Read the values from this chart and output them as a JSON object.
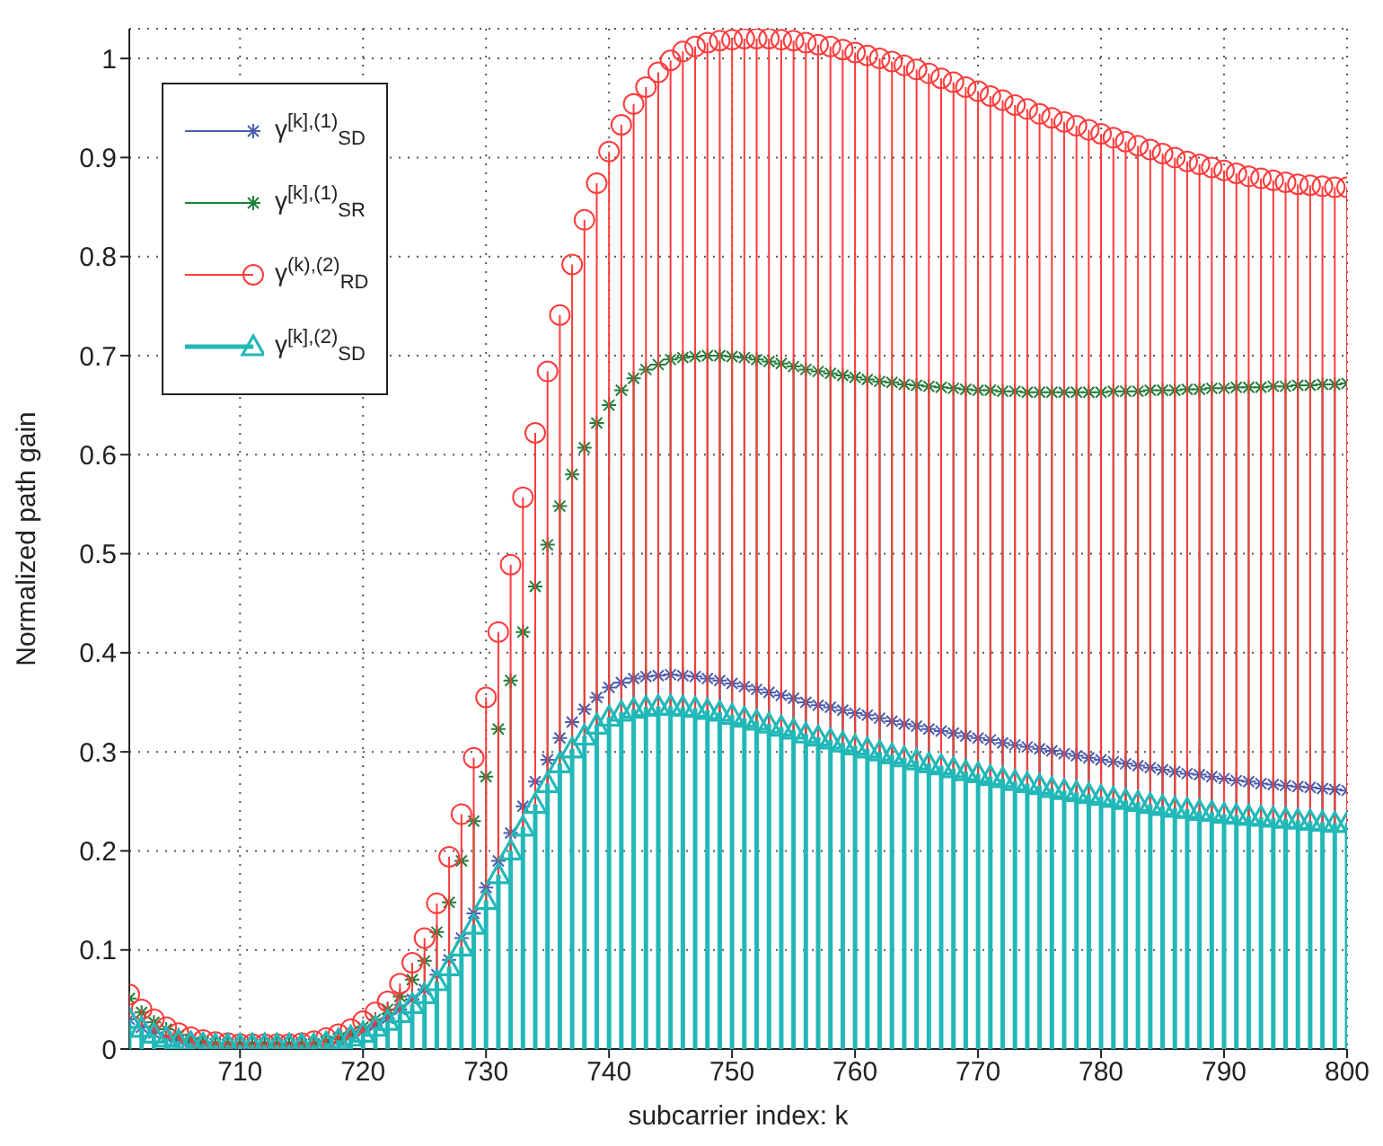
{
  "chart_data": {
    "type": "lollipop",
    "xlabel": "subcarrier index: k",
    "ylabel": "Normalized path gain",
    "x": [
      701,
      702,
      703,
      704,
      705,
      706,
      707,
      708,
      709,
      710,
      711,
      712,
      713,
      714,
      715,
      716,
      717,
      718,
      719,
      720,
      721,
      722,
      723,
      724,
      725,
      726,
      727,
      728,
      729,
      730,
      731,
      732,
      733,
      734,
      735,
      736,
      737,
      738,
      739,
      740,
      741,
      742,
      743,
      744,
      745,
      746,
      747,
      748,
      749,
      750,
      751,
      752,
      753,
      754,
      755,
      756,
      757,
      758,
      759,
      760,
      761,
      762,
      763,
      764,
      765,
      766,
      767,
      768,
      769,
      770,
      771,
      772,
      773,
      774,
      775,
      776,
      777,
      778,
      779,
      780,
      781,
      782,
      783,
      784,
      785,
      786,
      787,
      788,
      789,
      790,
      791,
      792,
      793,
      794,
      795,
      796,
      797,
      798,
      799,
      800
    ],
    "xlim": [
      701,
      800
    ],
    "xticks": [
      710,
      720,
      730,
      740,
      750,
      760,
      770,
      780,
      790,
      800
    ],
    "ylim": [
      0,
      1.03
    ],
    "yticks": [
      0,
      0.1,
      0.2,
      0.3,
      0.4,
      0.5,
      0.6,
      0.7,
      0.8,
      0.9,
      1
    ],
    "grid": true,
    "legend": "top left",
    "series": [
      {
        "name": "γ$^{[k],(1)}$$_{SD}$",
        "color": "#4a5cb0",
        "marker": "cross",
        "values": [
          0.03,
          0.022,
          0.016,
          0.012,
          0.009,
          0.007,
          0.006,
          0.005,
          0.005,
          0.005,
          0.005,
          0.005,
          0.005,
          0.005,
          0.005,
          0.005,
          0.007,
          0.01,
          0.013,
          0.018,
          0.024,
          0.031,
          0.04,
          0.05,
          0.06,
          0.075,
          0.09,
          0.112,
          0.137,
          0.163,
          0.19,
          0.218,
          0.245,
          0.27,
          0.292,
          0.314,
          0.33,
          0.343,
          0.355,
          0.365,
          0.37,
          0.374,
          0.376,
          0.377,
          0.378,
          0.377,
          0.376,
          0.374,
          0.372,
          0.369,
          0.366,
          0.363,
          0.36,
          0.357,
          0.354,
          0.35,
          0.347,
          0.345,
          0.342,
          0.339,
          0.337,
          0.334,
          0.331,
          0.328,
          0.326,
          0.323,
          0.321,
          0.319,
          0.316,
          0.314,
          0.312,
          0.309,
          0.307,
          0.305,
          0.303,
          0.301,
          0.298,
          0.296,
          0.294,
          0.292,
          0.29,
          0.288,
          0.286,
          0.284,
          0.282,
          0.28,
          0.278,
          0.277,
          0.275,
          0.273,
          0.271,
          0.27,
          0.268,
          0.267,
          0.266,
          0.265,
          0.264,
          0.263,
          0.262,
          0.261
        ]
      },
      {
        "name": "γ$^{[k],(1)}$$_{SR}$",
        "color": "#1f7f3a",
        "marker": "cross",
        "values": [
          0.051,
          0.037,
          0.027,
          0.02,
          0.014,
          0.01,
          0.007,
          0.005,
          0.004,
          0.004,
          0.004,
          0.004,
          0.004,
          0.004,
          0.004,
          0.005,
          0.008,
          0.011,
          0.016,
          0.022,
          0.03,
          0.04,
          0.053,
          0.07,
          0.089,
          0.118,
          0.148,
          0.19,
          0.23,
          0.275,
          0.323,
          0.372,
          0.421,
          0.467,
          0.509,
          0.548,
          0.58,
          0.607,
          0.632,
          0.65,
          0.665,
          0.677,
          0.686,
          0.691,
          0.696,
          0.698,
          0.699,
          0.7,
          0.7,
          0.699,
          0.698,
          0.696,
          0.694,
          0.692,
          0.689,
          0.686,
          0.684,
          0.682,
          0.68,
          0.678,
          0.676,
          0.674,
          0.673,
          0.671,
          0.67,
          0.669,
          0.668,
          0.667,
          0.666,
          0.665,
          0.665,
          0.664,
          0.664,
          0.663,
          0.663,
          0.663,
          0.663,
          0.663,
          0.663,
          0.663,
          0.664,
          0.664,
          0.664,
          0.665,
          0.665,
          0.665,
          0.666,
          0.666,
          0.667,
          0.667,
          0.668,
          0.668,
          0.668,
          0.669,
          0.669,
          0.67,
          0.67,
          0.671,
          0.671,
          0.672
        ]
      },
      {
        "name": "γ$^{(k),(2)}$$_{RD}$",
        "color": "#ff3b3b",
        "marker": "circle",
        "values": [
          0.055,
          0.04,
          0.03,
          0.022,
          0.016,
          0.012,
          0.009,
          0.007,
          0.006,
          0.005,
          0.005,
          0.005,
          0.005,
          0.005,
          0.006,
          0.008,
          0.011,
          0.015,
          0.02,
          0.028,
          0.037,
          0.048,
          0.066,
          0.087,
          0.112,
          0.147,
          0.194,
          0.237,
          0.294,
          0.355,
          0.421,
          0.489,
          0.557,
          0.622,
          0.684,
          0.741,
          0.792,
          0.837,
          0.874,
          0.906,
          0.933,
          0.954,
          0.971,
          0.986,
          0.998,
          1.007,
          1.012,
          1.016,
          1.018,
          1.019,
          1.02,
          1.02,
          1.02,
          1.019,
          1.018,
          1.016,
          1.014,
          1.012,
          1.009,
          1.006,
          1.003,
          1.0,
          0.997,
          0.993,
          0.989,
          0.985,
          0.98,
          0.976,
          0.971,
          0.967,
          0.962,
          0.958,
          0.953,
          0.949,
          0.944,
          0.94,
          0.936,
          0.932,
          0.928,
          0.924,
          0.92,
          0.916,
          0.912,
          0.908,
          0.904,
          0.9,
          0.896,
          0.893,
          0.89,
          0.887,
          0.884,
          0.881,
          0.879,
          0.877,
          0.875,
          0.873,
          0.872,
          0.871,
          0.87,
          0.87
        ]
      },
      {
        "name": "γ$^{[k],(2)}$$_{SD}$",
        "color": "#22b8b8",
        "marker": "triangle",
        "values": [
          0.03,
          0.021,
          0.015,
          0.011,
          0.008,
          0.006,
          0.005,
          0.004,
          0.004,
          0.004,
          0.004,
          0.004,
          0.004,
          0.004,
          0.004,
          0.004,
          0.006,
          0.009,
          0.012,
          0.016,
          0.022,
          0.028,
          0.036,
          0.045,
          0.055,
          0.068,
          0.083,
          0.103,
          0.125,
          0.15,
          0.176,
          0.2,
          0.224,
          0.247,
          0.268,
          0.288,
          0.303,
          0.316,
          0.327,
          0.335,
          0.34,
          0.343,
          0.345,
          0.346,
          0.346,
          0.345,
          0.344,
          0.342,
          0.34,
          0.337,
          0.334,
          0.331,
          0.328,
          0.325,
          0.322,
          0.318,
          0.315,
          0.312,
          0.309,
          0.306,
          0.303,
          0.3,
          0.297,
          0.294,
          0.291,
          0.288,
          0.286,
          0.283,
          0.28,
          0.278,
          0.275,
          0.273,
          0.27,
          0.268,
          0.266,
          0.263,
          0.261,
          0.259,
          0.257,
          0.255,
          0.253,
          0.251,
          0.249,
          0.247,
          0.245,
          0.243,
          0.242,
          0.24,
          0.239,
          0.237,
          0.236,
          0.235,
          0.234,
          0.233,
          0.232,
          0.231,
          0.23,
          0.229,
          0.228,
          0.228
        ]
      }
    ]
  }
}
